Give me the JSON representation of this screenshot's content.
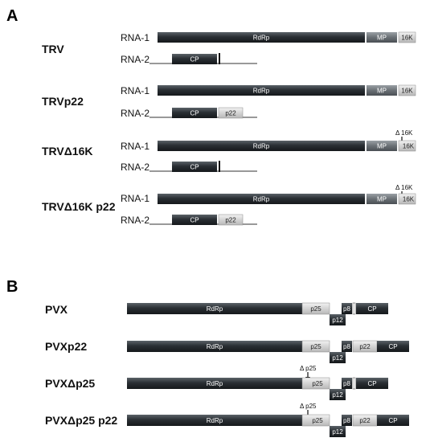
{
  "panel_a": {
    "letter": "A",
    "rna1_label": "RNA-1",
    "rna2_label": "RNA-2",
    "constructs": [
      {
        "name": "TRV",
        "rna2_p22": false,
        "deletion_mark": false
      },
      {
        "name": "TRVp22",
        "rna2_p22": true,
        "deletion_mark": false
      },
      {
        "name": "TRVΔ16K",
        "rna2_p22": false,
        "deletion_mark": true
      },
      {
        "name": "TRVΔ16K p22",
        "rna2_p22": true,
        "deletion_mark": true
      }
    ],
    "segments": {
      "rdrp": "RdRp",
      "mp": "MP",
      "k16": "16K",
      "cp": "CP",
      "p22": "p22"
    },
    "deletion_label": "Δ 16K"
  },
  "panel_b": {
    "letter": "B",
    "constructs": [
      {
        "name": "PVX",
        "p22": false,
        "deletion_mark": false
      },
      {
        "name": "PVXp22",
        "p22": true,
        "deletion_mark": false
      },
      {
        "name": "PVXΔp25",
        "p22": false,
        "deletion_mark": true
      },
      {
        "name": "PVXΔp25 p22",
        "p22": true,
        "deletion_mark": true
      }
    ],
    "segments": {
      "rdrp": "RdRp",
      "p25": "p25",
      "p12": "p12",
      "p8": "p8",
      "p22": "p22",
      "cp": "CP"
    },
    "deletion_label": "Δ p25"
  },
  "colors": {
    "dark_segment": "#2b3137",
    "light_segment": "#d9d9d9",
    "mp_segment": "#6f7479",
    "line": "#333333"
  }
}
